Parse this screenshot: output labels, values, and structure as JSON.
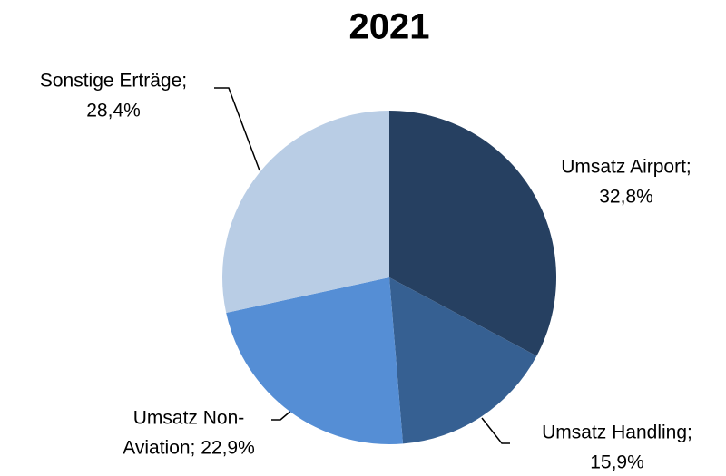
{
  "chart_data": {
    "type": "pie",
    "title": "2021",
    "values": [
      32.8,
      15.9,
      22.9,
      28.4
    ],
    "value_labels": [
      [
        "Umsatz Airport;",
        "32,8%"
      ],
      [
        "Umsatz Handling;",
        "15,9%"
      ],
      [
        "Umsatz Non-",
        "Aviation; 22,9%"
      ],
      [
        "Sonstige Erträge;",
        "28,4%"
      ]
    ],
    "colors": [
      "#264061",
      "#366092",
      "#558ED5",
      "#B9CDE5"
    ]
  }
}
